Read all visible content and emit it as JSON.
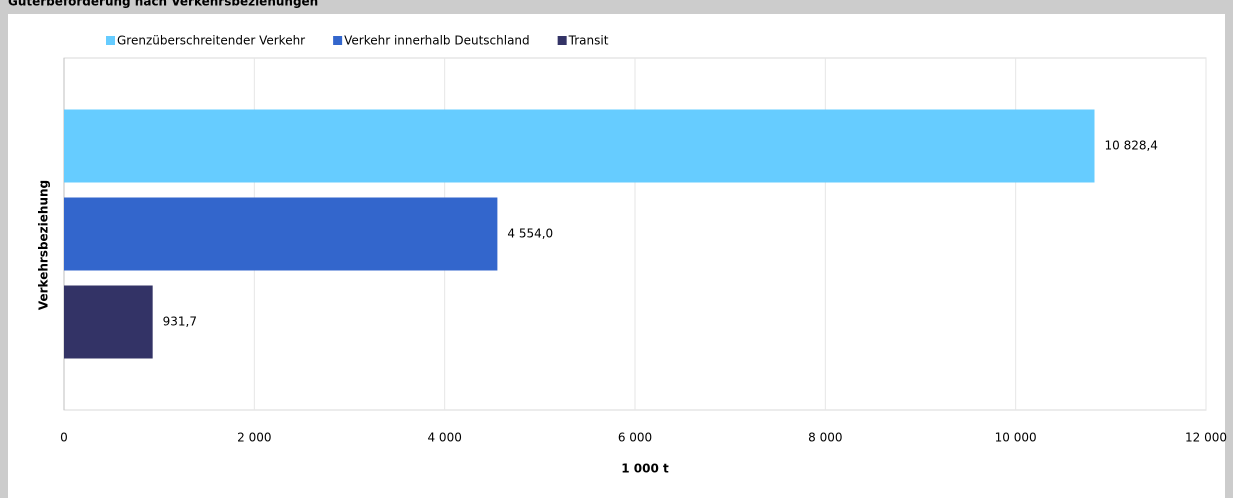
{
  "chart_data": {
    "type": "bar",
    "orientation": "horizontal",
    "title": "Güterbeförderung nach Verkehrsbeziehungen",
    "categories": [
      null
    ],
    "series": [
      {
        "name": "Grenzüberschreitender Verkehr",
        "color": "#66ccff",
        "values": [
          10828.4
        ],
        "value_labels": [
          "10 828,4"
        ]
      },
      {
        "name": "Verkehr innerhalb Deutschland",
        "color": "#3366cc",
        "values": [
          4554.0
        ],
        "value_labels": [
          "4 554,0"
        ]
      },
      {
        "name": "Transit",
        "color": "#333366",
        "values": [
          931.7
        ],
        "value_labels": [
          "931,7"
        ]
      }
    ],
    "xlabel": "1 000 t",
    "ylabel": "Verkehrsbeziehung",
    "xlim": [
      0,
      12000
    ],
    "xticks": [
      0,
      {
        "value": 2000,
        "label": "2 000"
      },
      {
        "value": 4000,
        "label": "4 000"
      },
      {
        "value": 6000,
        "label": "6 000"
      },
      {
        "value": 8000,
        "label": "8 000"
      },
      {
        "value": 10000,
        "label": "10 000"
      },
      {
        "value": 12000,
        "label": "12 000"
      }
    ],
    "grid": true,
    "legend": "top"
  }
}
